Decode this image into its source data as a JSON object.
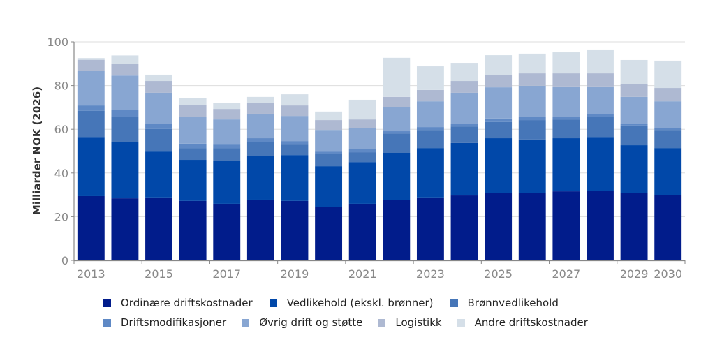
{
  "chart_data": {
    "type": "bar",
    "stacked": true,
    "title": "",
    "xlabel": "",
    "ylabel": "Milliarder NOK (2026)",
    "ylim": [
      0,
      100
    ],
    "yticks": [
      0,
      20,
      40,
      60,
      80,
      100
    ],
    "grid": true,
    "legend_position": "bottom",
    "categories": [
      "2013",
      "2014",
      "2015",
      "2016",
      "2017",
      "2018",
      "2019",
      "2020",
      "2021",
      "2022",
      "2023",
      "2024",
      "2025",
      "2026",
      "2027",
      "2028",
      "2029",
      "2030"
    ],
    "xtick_labels": [
      "2013",
      "2015",
      "2017",
      "2019",
      "2021",
      "2023",
      "2025",
      "2027",
      "2029",
      "2030"
    ],
    "xtick_label_categories": [
      "2013",
      "2015",
      "2017",
      "2019",
      "2021",
      "2023",
      "2025",
      "2027",
      "2029",
      "2030"
    ],
    "series": [
      {
        "name": "Ordinære driftskostnader",
        "color": "#011c8b",
        "values": [
          29.4,
          28.4,
          28.8,
          27.2,
          25.9,
          27.8,
          27.2,
          24.6,
          25.9,
          27.5,
          28.8,
          29.7,
          30.7,
          30.7,
          31.6,
          31.9,
          30.7,
          30.0
        ]
      },
      {
        "name": "Vedlikehold (ekskl. brønner)",
        "color": "#0148a9",
        "values": [
          27.1,
          25.9,
          21.0,
          18.8,
          19.5,
          20.1,
          21.0,
          18.5,
          19.1,
          21.7,
          22.6,
          24.0,
          25.2,
          24.6,
          24.3,
          24.6,
          22.0,
          21.4
        ]
      },
      {
        "name": "Brønnvedlikehold",
        "color": "#4676b8",
        "values": [
          11.9,
          11.5,
          10.3,
          5.4,
          6.0,
          6.1,
          4.8,
          5.5,
          4.5,
          8.9,
          8.3,
          7.6,
          7.4,
          8.9,
          8.6,
          9.3,
          9.0,
          8.3
        ]
      },
      {
        "name": "Driftsmodifikasjoner",
        "color": "#5f89c5",
        "values": [
          2.5,
          2.9,
          2.5,
          2.0,
          1.6,
          1.9,
          1.6,
          1.2,
          1.3,
          1.0,
          1.3,
          1.3,
          1.6,
          1.6,
          1.3,
          1.0,
          0.9,
          1.0
        ]
      },
      {
        "name": "Øvrig drift og støtte",
        "color": "#88a6d2",
        "values": [
          15.7,
          15.9,
          14.1,
          12.4,
          11.5,
          11.2,
          11.5,
          9.9,
          9.6,
          10.9,
          11.8,
          14.1,
          14.3,
          14.1,
          13.8,
          12.8,
          12.2,
          12.1
        ]
      },
      {
        "name": "Logistikk",
        "color": "#aeb9d2",
        "values": [
          5.2,
          5.4,
          5.4,
          5.4,
          4.8,
          4.8,
          4.8,
          4.5,
          4.1,
          4.8,
          5.2,
          5.4,
          5.5,
          5.7,
          6.0,
          6.0,
          6.0,
          6.1
        ]
      },
      {
        "name": "Andre driftskostnader",
        "color": "#d5dfe8",
        "values": [
          0.8,
          3.8,
          2.9,
          3.2,
          2.9,
          2.9,
          5.1,
          3.9,
          9.0,
          17.9,
          10.8,
          8.3,
          9.2,
          9.0,
          9.6,
          10.9,
          10.9,
          12.5
        ]
      }
    ]
  }
}
